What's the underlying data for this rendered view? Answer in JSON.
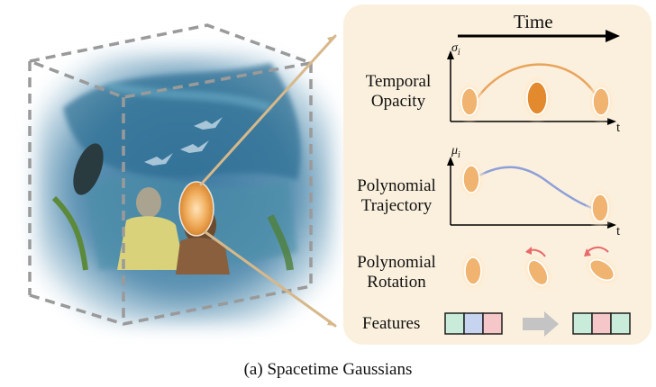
{
  "figure": {
    "caption": "(a) Spacetime Gaussians"
  },
  "panel": {
    "time_label": "Time",
    "rows": [
      {
        "label_line1": "Temporal",
        "label_line2": "Opacity",
        "axis_y": "σi",
        "axis_x": "t"
      },
      {
        "label_line1": "Polynomial",
        "label_line2": "Trajectory",
        "axis_y": "μi",
        "axis_x": "t"
      },
      {
        "label_line1": "Polynomial",
        "label_line2": "Rotation"
      },
      {
        "label_line1": "Features"
      }
    ]
  },
  "colors": {
    "panel_bg": "#fbf0dd",
    "gaussian": "#e69a45",
    "opacity_curve": "#e8a45c",
    "trajectory_curve": "#8e9fd8",
    "rotation_arrow": "#e86a6a",
    "feature_green": "#c8ecd9",
    "feature_blue": "#c6d4ef",
    "feature_pink": "#f6c7c9",
    "process_arrow": "#c4c4c4",
    "cube_dash": "#9a9a9a"
  },
  "icons": [
    "gaussian-ellipse-icon",
    "rotation-arrow-icon",
    "process-arrow-icon"
  ]
}
